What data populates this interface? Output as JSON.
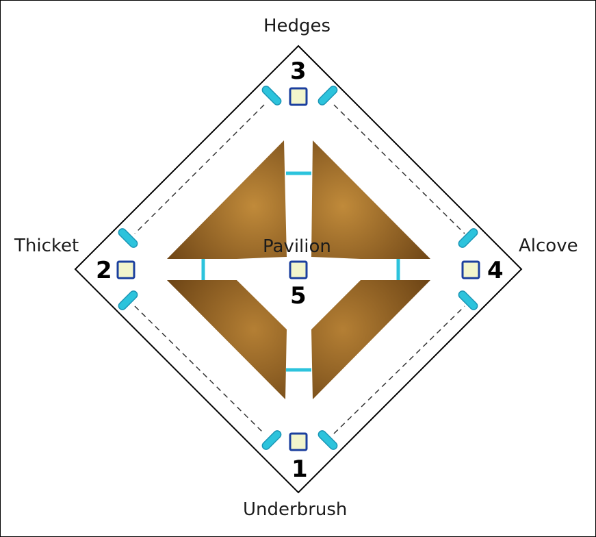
{
  "areas": {
    "top": "Hedges",
    "left": "Thicket",
    "right": "Alcove",
    "bottom": "Underbrush",
    "center": "Pavilion"
  },
  "points": {
    "bottom": "1",
    "left": "2",
    "top": "3",
    "right": "4",
    "center": "5"
  },
  "colors": {
    "outline": "#000000",
    "dashed_path": "#333333",
    "point_fill": "#f2f5cc",
    "point_stroke": "#1b3f9e",
    "gate": "#2cc3dc",
    "gate_stroke": "#1a95b5",
    "wall_light": "#c08a3a",
    "wall_dark": "#6e4516"
  }
}
